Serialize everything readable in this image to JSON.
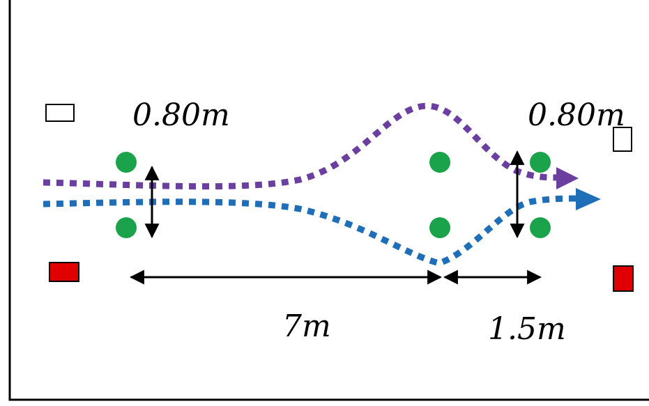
{
  "labels": {
    "gap_left": "0.80m",
    "gap_right": "0.80m",
    "distance_main": "7m",
    "distance_short": "1.5m"
  },
  "colors": {
    "frame": "#000000",
    "cone": "#1aa34a",
    "path_purple": "#6b3fa0",
    "path_blue": "#1f6fb8",
    "marker_red": "#e00000",
    "marker_white": "#ffffff",
    "dimension": "#000000"
  },
  "icons": {
    "cone": "circle",
    "start_marker": "rectangle",
    "end_marker": "rectangle"
  }
}
